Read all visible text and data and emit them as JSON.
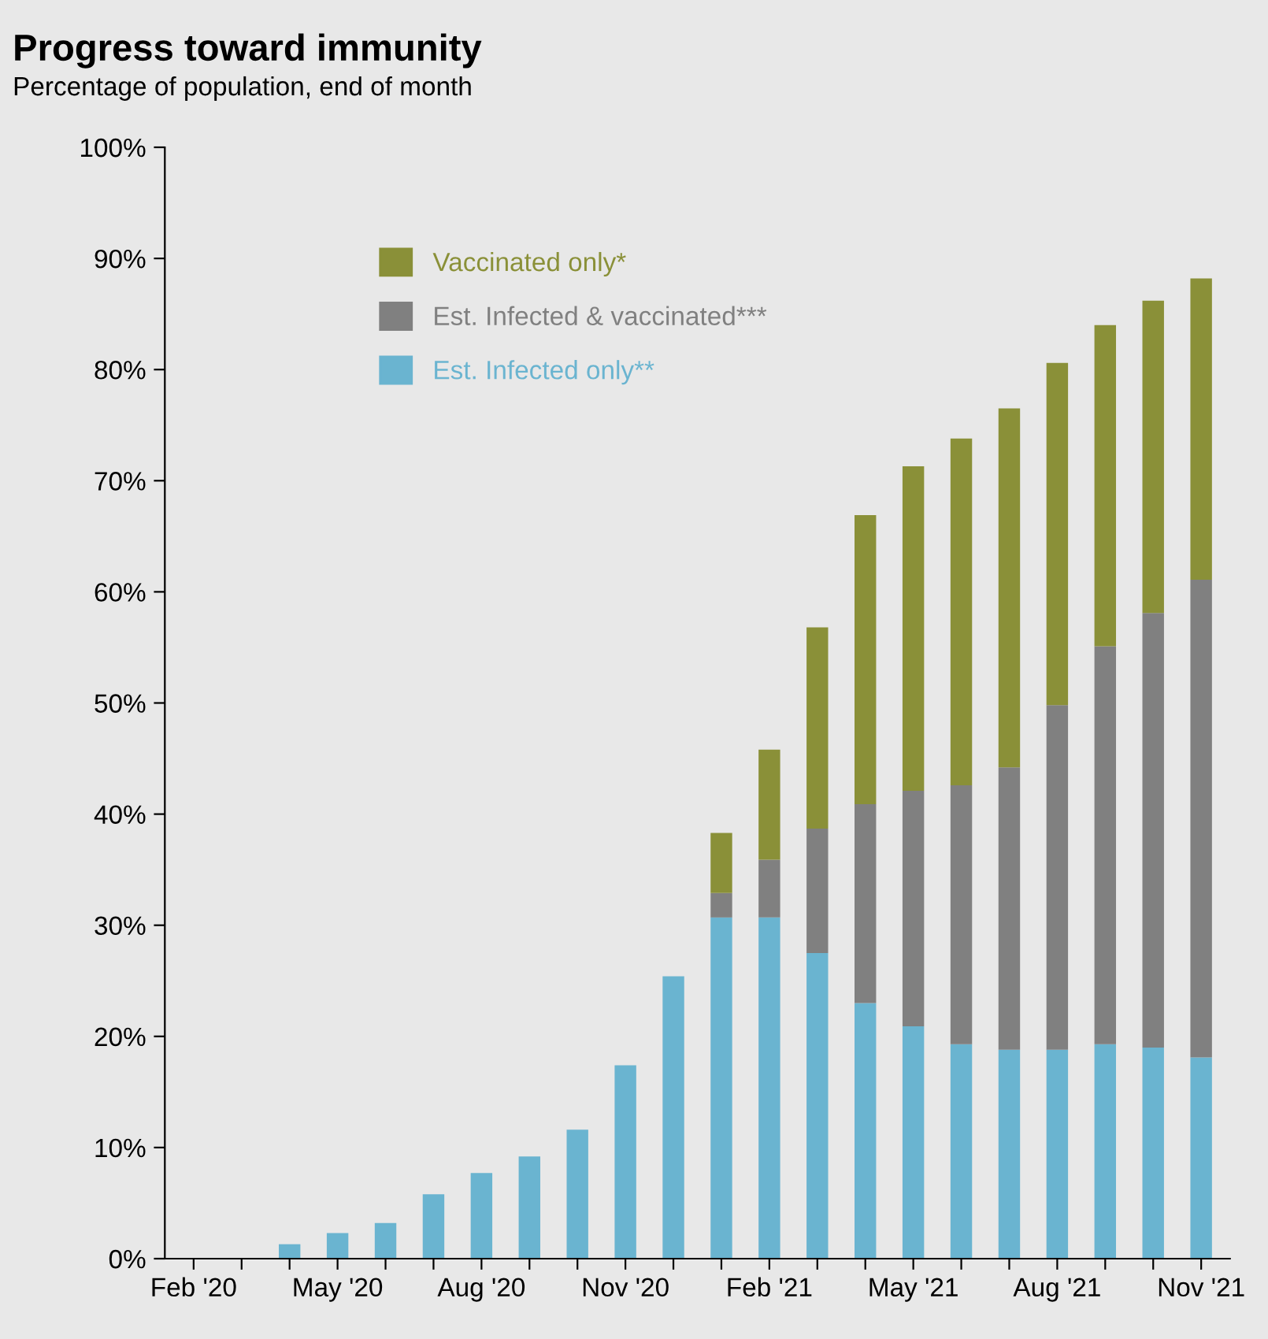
{
  "chart_data": {
    "type": "bar",
    "title": "Progress toward immunity",
    "subtitle": "Percentage of population, end of month",
    "categories": [
      "Feb '20",
      null,
      null,
      "May '20",
      null,
      null,
      "Aug '20",
      null,
      null,
      "Nov '20",
      null,
      null,
      "Feb '21",
      null,
      null,
      "May '21",
      null,
      null,
      "Aug '21",
      null,
      null,
      "Nov '21"
    ],
    "stacked": true,
    "series": [
      {
        "name": "Est. Infected only**",
        "color": "#6ab4d0",
        "values": [
          0,
          0,
          1.3,
          2.3,
          3.2,
          5.8,
          7.7,
          9.2,
          11.6,
          17.4,
          25.4,
          30.7,
          30.7,
          27.5,
          23.0,
          20.9,
          19.3,
          18.8,
          18.8,
          19.3,
          19.0,
          18.1
        ]
      },
      {
        "name": "Est. Infected & vaccinated***",
        "color": "#808080",
        "values": [
          0,
          0,
          0,
          0,
          0,
          0,
          0,
          0,
          0,
          0,
          0,
          2.2,
          5.2,
          11.2,
          17.9,
          21.2,
          23.3,
          25.4,
          31.0,
          35.8,
          39.1,
          43.0
        ]
      },
      {
        "name": "Vaccinated only*",
        "color": "#8a9038",
        "values": [
          0,
          0,
          0,
          0,
          0,
          0,
          0,
          0,
          0,
          0,
          0,
          5.4,
          9.9,
          18.1,
          26.0,
          29.2,
          31.2,
          32.3,
          30.8,
          28.9,
          28.1,
          27.1
        ]
      }
    ],
    "ylim": [
      0,
      100
    ],
    "yticks": [
      {
        "value": 0,
        "label": "0%"
      },
      {
        "value": 10,
        "label": "10%"
      },
      {
        "value": 20,
        "label": "20%"
      },
      {
        "value": 30,
        "label": "30%"
      },
      {
        "value": 40,
        "label": "40%"
      },
      {
        "value": 50,
        "label": "50%"
      },
      {
        "value": 60,
        "label": "60%"
      },
      {
        "value": 70,
        "label": "70%"
      },
      {
        "value": 80,
        "label": "80%"
      },
      {
        "value": 90,
        "label": "90%"
      },
      {
        "value": 100,
        "label": "100%"
      }
    ],
    "grid": false,
    "legend": "top left"
  }
}
